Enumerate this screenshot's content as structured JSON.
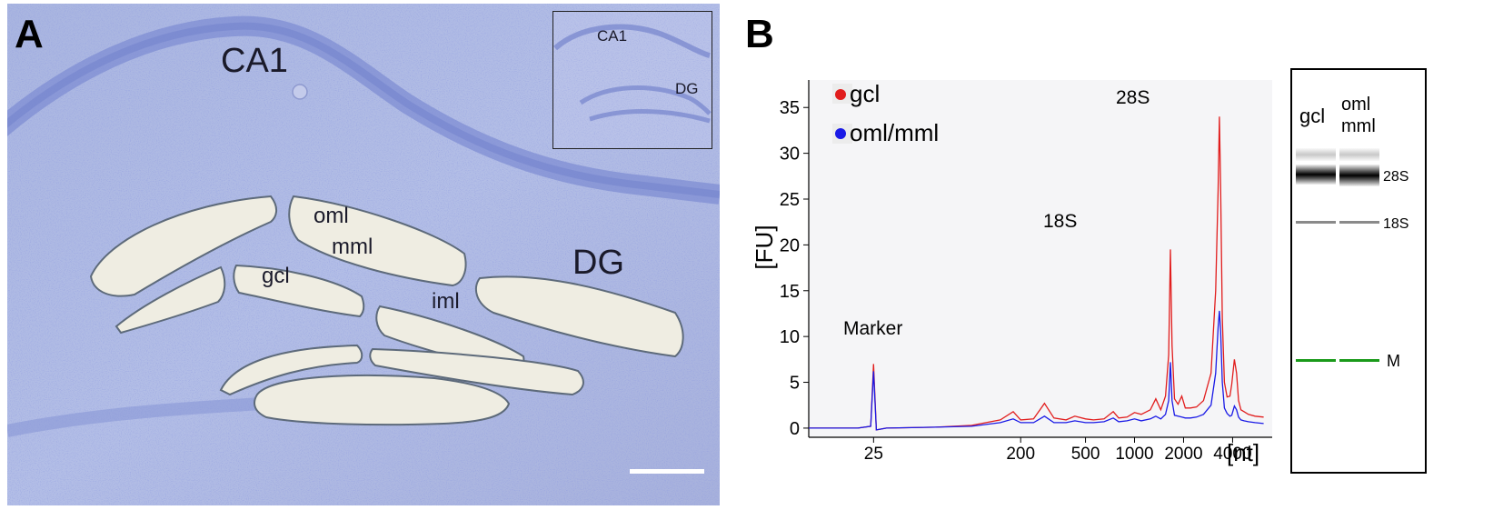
{
  "panel_a": {
    "label": "A",
    "regions": {
      "ca1": "CA1",
      "dg": "DG"
    },
    "layers": {
      "oml": "oml",
      "mml": "mml",
      "gcl": "gcl",
      "iml": "iml"
    },
    "inset": {
      "ca1": "CA1",
      "dg": "DG"
    }
  },
  "panel_b": {
    "label": "B",
    "legend": [
      {
        "name": "gcl",
        "color": "#e11d1d"
      },
      {
        "name": "oml/mml",
        "color": "#1a1ae6"
      }
    ],
    "annotations": {
      "marker": "Marker",
      "s18": "18S",
      "s28": "28S"
    },
    "gel": {
      "lanes": [
        "gcl",
        "oml",
        "mml"
      ],
      "bands": [
        "28S",
        "18S",
        "M"
      ],
      "marker_color": "#1a9a1a"
    }
  },
  "chart_data": {
    "type": "line",
    "ylabel": "[FU]",
    "xlabel": "[nt]",
    "y_ticks": [
      0,
      5,
      10,
      15,
      20,
      25,
      30,
      35
    ],
    "ylim": [
      -1,
      38
    ],
    "x_ticks": [
      "25",
      "200",
      "500",
      "1000",
      "2000",
      "4000"
    ],
    "x_tick_positions": [
      25,
      200,
      500,
      1000,
      2000,
      4000
    ],
    "grid": false,
    "legend_position": "top-left",
    "series": [
      {
        "name": "gcl",
        "color": "#e11d1d",
        "points": [
          [
            10,
            0
          ],
          [
            20,
            0
          ],
          [
            24,
            0.2
          ],
          [
            25,
            7
          ],
          [
            26,
            -0.2
          ],
          [
            30,
            0
          ],
          [
            60,
            0.1
          ],
          [
            100,
            0.3
          ],
          [
            150,
            0.9
          ],
          [
            180,
            1.8
          ],
          [
            200,
            0.9
          ],
          [
            240,
            1.0
          ],
          [
            280,
            2.7
          ],
          [
            320,
            1.1
          ],
          [
            380,
            0.9
          ],
          [
            430,
            1.3
          ],
          [
            500,
            1.0
          ],
          [
            560,
            0.9
          ],
          [
            650,
            1.0
          ],
          [
            740,
            1.8
          ],
          [
            800,
            1.1
          ],
          [
            900,
            1.2
          ],
          [
            1000,
            1.7
          ],
          [
            1100,
            1.5
          ],
          [
            1250,
            2.0
          ],
          [
            1350,
            3.2
          ],
          [
            1450,
            2.0
          ],
          [
            1550,
            3.5
          ],
          [
            1620,
            8.0
          ],
          [
            1660,
            19.5
          ],
          [
            1700,
            9.0
          ],
          [
            1760,
            3.2
          ],
          [
            1850,
            2.6
          ],
          [
            1950,
            3.5
          ],
          [
            2050,
            2.2
          ],
          [
            2200,
            2.2
          ],
          [
            2400,
            2.3
          ],
          [
            2650,
            3.0
          ],
          [
            2950,
            6.0
          ],
          [
            3150,
            15.0
          ],
          [
            3260,
            26.0
          ],
          [
            3320,
            34.0
          ],
          [
            3380,
            26.0
          ],
          [
            3460,
            12.0
          ],
          [
            3560,
            5.0
          ],
          [
            3700,
            3.4
          ],
          [
            3850,
            3.5
          ],
          [
            3950,
            4.8
          ],
          [
            4100,
            7.5
          ],
          [
            4230,
            6.0
          ],
          [
            4350,
            3.0
          ],
          [
            4500,
            2.0
          ],
          [
            4700,
            1.8
          ],
          [
            5000,
            1.5
          ],
          [
            5500,
            1.3
          ],
          [
            6200,
            1.2
          ]
        ]
      },
      {
        "name": "oml/mml",
        "color": "#1a1ae6",
        "points": [
          [
            10,
            0
          ],
          [
            20,
            0
          ],
          [
            24,
            0.2
          ],
          [
            25,
            6.2
          ],
          [
            26,
            -0.2
          ],
          [
            30,
            0
          ],
          [
            60,
            0.1
          ],
          [
            100,
            0.2
          ],
          [
            150,
            0.6
          ],
          [
            180,
            1.0
          ],
          [
            200,
            0.6
          ],
          [
            240,
            0.6
          ],
          [
            280,
            1.3
          ],
          [
            320,
            0.6
          ],
          [
            380,
            0.6
          ],
          [
            430,
            0.8
          ],
          [
            500,
            0.6
          ],
          [
            560,
            0.6
          ],
          [
            650,
            0.7
          ],
          [
            740,
            1.1
          ],
          [
            800,
            0.7
          ],
          [
            900,
            0.8
          ],
          [
            1000,
            1.0
          ],
          [
            1100,
            0.8
          ],
          [
            1250,
            1.0
          ],
          [
            1350,
            1.3
          ],
          [
            1450,
            1.0
          ],
          [
            1550,
            1.5
          ],
          [
            1620,
            3.0
          ],
          [
            1660,
            7.2
          ],
          [
            1700,
            3.0
          ],
          [
            1760,
            1.4
          ],
          [
            1850,
            1.3
          ],
          [
            1950,
            1.2
          ],
          [
            2050,
            1.1
          ],
          [
            2200,
            1.1
          ],
          [
            2400,
            1.2
          ],
          [
            2650,
            1.5
          ],
          [
            2950,
            2.5
          ],
          [
            3150,
            6.0
          ],
          [
            3260,
            11.0
          ],
          [
            3320,
            12.8
          ],
          [
            3380,
            10.5
          ],
          [
            3460,
            5.0
          ],
          [
            3560,
            2.2
          ],
          [
            3700,
            1.6
          ],
          [
            3850,
            1.3
          ],
          [
            3950,
            1.4
          ],
          [
            4100,
            2.4
          ],
          [
            4230,
            2.0
          ],
          [
            4350,
            1.2
          ],
          [
            4500,
            0.9
          ],
          [
            4700,
            0.8
          ],
          [
            5000,
            0.7
          ],
          [
            5500,
            0.6
          ],
          [
            6200,
            0.5
          ]
        ]
      }
    ]
  }
}
